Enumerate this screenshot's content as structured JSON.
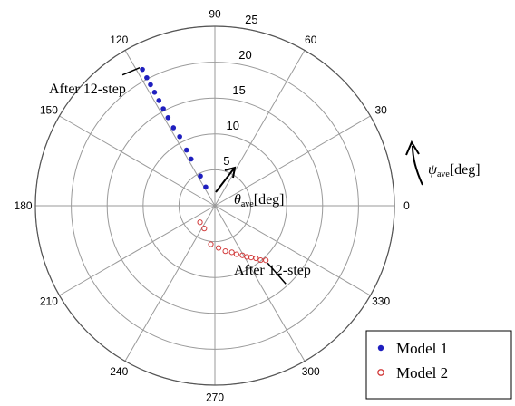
{
  "chart_data": {
    "type": "scatter",
    "projection": "polar",
    "angular_axis": {
      "label_symbol": "ψ",
      "label_sub": "ave",
      "label_unit": "[deg]",
      "ticks": [
        0,
        30,
        60,
        90,
        120,
        150,
        180,
        210,
        240,
        270,
        300,
        330
      ],
      "direction": "counterclockwise"
    },
    "radial_axis": {
      "label_symbol": "θ",
      "label_sub": "ave",
      "label_unit": "[deg]",
      "ticks": [
        5,
        10,
        15,
        20,
        25
      ],
      "range": [
        0,
        25
      ]
    },
    "grid": true,
    "legend_position": "bottom-right",
    "series": [
      {
        "name": "Model 1",
        "marker": "filled-circle",
        "color": "#1f1fbf",
        "points": [
          {
            "theta": 116,
            "r": 2.9
          },
          {
            "theta": 116,
            "r": 4.6
          },
          {
            "theta": 117,
            "r": 7.3
          },
          {
            "theta": 117,
            "r": 8.7
          },
          {
            "theta": 117,
            "r": 10.8
          },
          {
            "theta": 118,
            "r": 12.3
          },
          {
            "theta": 118,
            "r": 13.9
          },
          {
            "theta": 118,
            "r": 15.3
          },
          {
            "theta": 118,
            "r": 16.6
          },
          {
            "theta": 118,
            "r": 17.9
          },
          {
            "theta": 118,
            "r": 19.1
          },
          {
            "theta": 118,
            "r": 20.2
          },
          {
            "theta": 118,
            "r": 21.5
          }
        ]
      },
      {
        "name": "Model 2",
        "marker": "open-circle",
        "color": "#d23c3c",
        "points": [
          {
            "theta": 228,
            "r": 3.1
          },
          {
            "theta": 245,
            "r": 3.5
          },
          {
            "theta": 264,
            "r": 5.4
          },
          {
            "theta": 275,
            "r": 5.9
          },
          {
            "theta": 283,
            "r": 6.5
          },
          {
            "theta": 290,
            "r": 6.9
          },
          {
            "theta": 294,
            "r": 7.4
          },
          {
            "theta": 299,
            "r": 7.9
          },
          {
            "theta": 302,
            "r": 8.4
          },
          {
            "theta": 305,
            "r": 8.8
          },
          {
            "theta": 308,
            "r": 9.3
          },
          {
            "theta": 310,
            "r": 9.9
          },
          {
            "theta": 313,
            "r": 10.4
          }
        ]
      }
    ],
    "annotations": [
      {
        "text": "After 12-step",
        "series": "Model 1"
      },
      {
        "text": "After 12-step",
        "series": "Model 2"
      }
    ]
  }
}
